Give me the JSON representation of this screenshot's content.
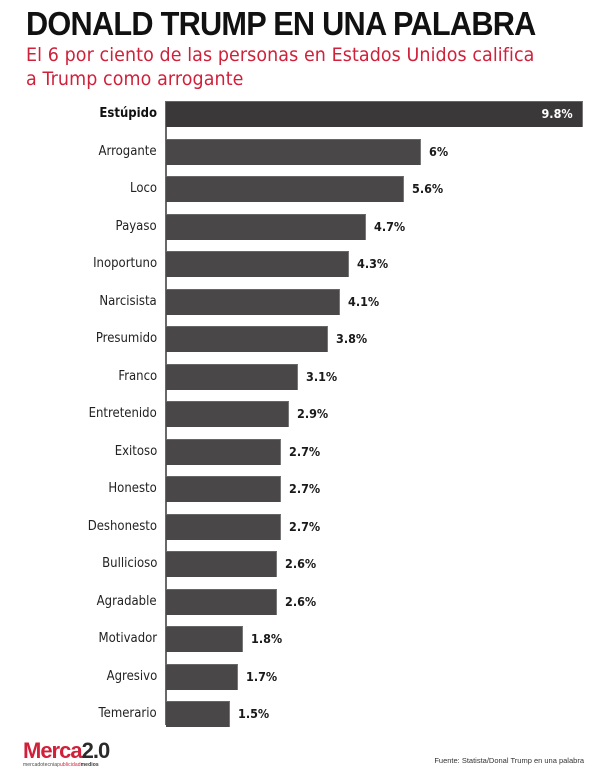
{
  "header": {
    "title": "DONALD TRUMP EN UNA PALABRA",
    "subtitle": "El 6 por ciento de las personas en Estados Unidos califica a Trump como arrogante"
  },
  "colors": {
    "title": "#111111",
    "subtitle": "#d0203a",
    "bar": "#4a4748",
    "bar_highlight": "#3b3839",
    "axis": "#6b6869",
    "brand_red": "#d0203a"
  },
  "chart_data": {
    "type": "bar",
    "orientation": "horizontal",
    "title": "DONALD TRUMP EN UNA PALABRA",
    "subtitle": "El 6 por ciento de las personas en Estados Unidos califica a Trump como arrogante",
    "xlabel": "",
    "ylabel": "",
    "unit": "%",
    "grid": false,
    "legend": null,
    "categories": [
      "Estúpido",
      "Arrogante",
      "Loco",
      "Payaso",
      "Inoportuno",
      "Narcisista",
      "Presumido",
      "Franco",
      "Entretenido",
      "Exitoso",
      "Honesto",
      "Deshonesto",
      "Bullicioso",
      "Agradable",
      "Motivador",
      "Agresivo",
      "Temerario"
    ],
    "values": [
      9.8,
      6,
      5.6,
      4.7,
      4.3,
      4.1,
      3.8,
      3.1,
      2.9,
      2.7,
      2.7,
      2.7,
      2.6,
      2.6,
      1.8,
      1.7,
      1.5
    ],
    "labels": [
      "9.8%",
      "6%",
      "5.6%",
      "4.7%",
      "4.3%",
      "4.1%",
      "3.8%",
      "3.1%",
      "2.9%",
      "2.7%",
      "2.7%",
      "2.7%",
      "2.6%",
      "2.6%",
      "1.8%",
      "1.7%",
      "1.5%"
    ],
    "highlighted": "Estúpido",
    "xlim": [
      0,
      9.8
    ]
  },
  "footer": {
    "logo_main": "Merca",
    "logo_num": "2.0",
    "logo_tag_a": "mercadotecnia",
    "logo_tag_b": "publicidad",
    "logo_tag_c": "medios",
    "source": "Fuente: Statista/Donal Trump en una palabra"
  }
}
